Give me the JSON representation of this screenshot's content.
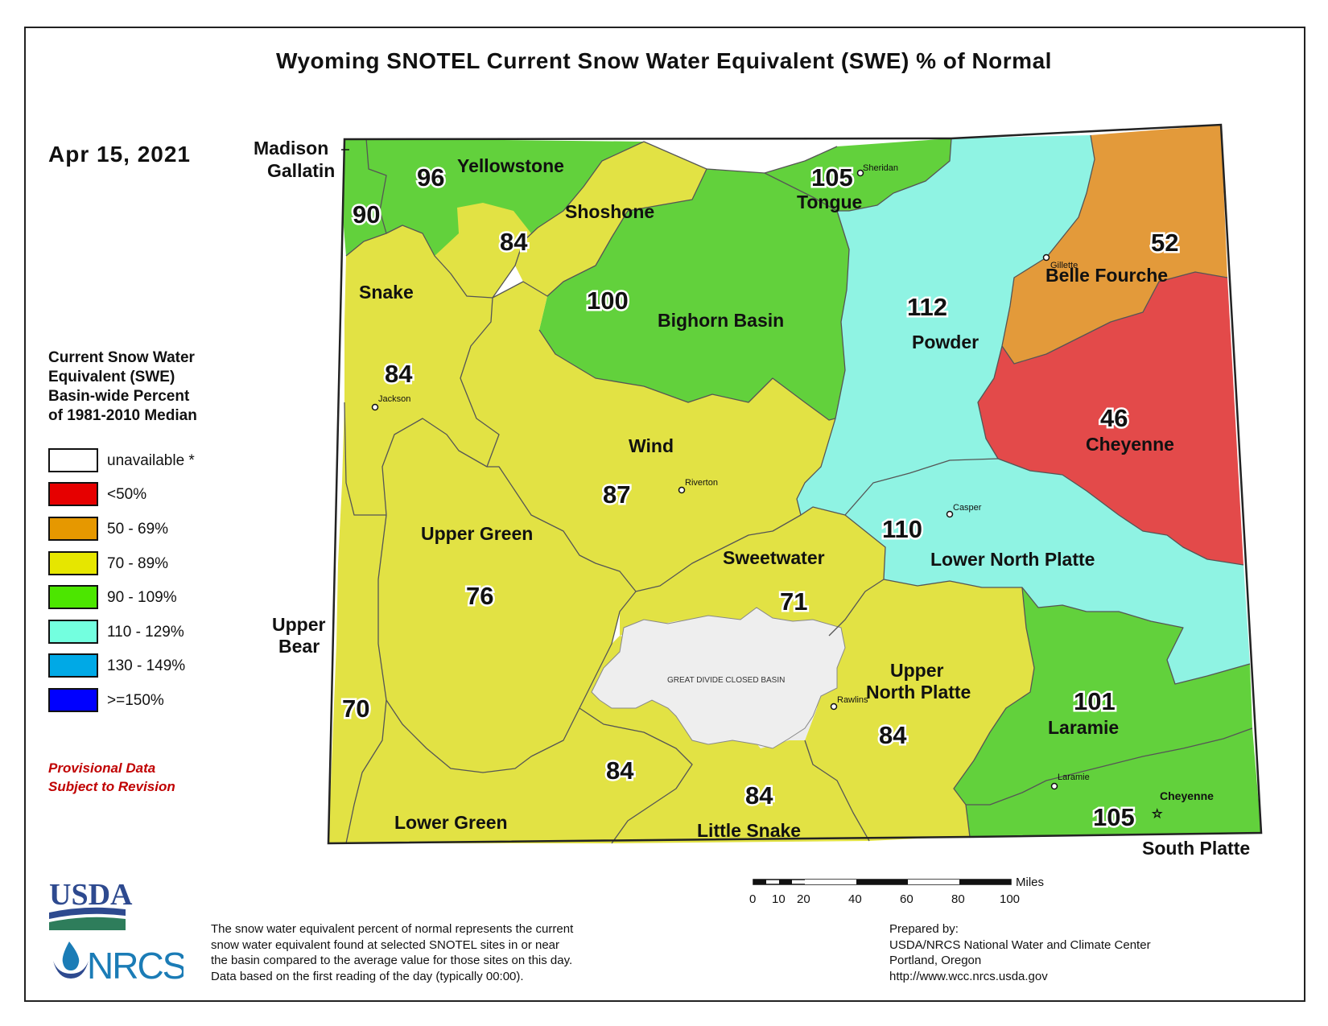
{
  "title": "Wyoming SNOTEL Current Snow Water Equivalent (SWE) % of Normal",
  "date": "Apr 15, 2021",
  "legend": {
    "title_lines": [
      "Current Snow Water",
      "Equivalent (SWE)",
      "Basin-wide Percent",
      "of 1981-2010 Median"
    ],
    "items": [
      {
        "label": "unavailable *",
        "color": "#ffffff"
      },
      {
        "label": "<50%",
        "color": "#e60000"
      },
      {
        "label": "50 - 69%",
        "color": "#e69800"
      },
      {
        "label": "70 - 89%",
        "color": "#e6e600"
      },
      {
        "label": "90 - 109%",
        "color": "#4ce600"
      },
      {
        "label": "110 - 129%",
        "color": "#73ffdf"
      },
      {
        "label": "130 - 149%",
        "color": "#00a9e6"
      },
      {
        "label": ">=150%",
        "color": "#0000ff"
      }
    ]
  },
  "provisional_lines": [
    "Provisional Data",
    "Subject to Revision"
  ],
  "basins": [
    {
      "name": "Madison - Gallatin",
      "name_lines": [
        "Madison",
        "Gallatin"
      ],
      "value": "90",
      "color": "#62d13c"
    },
    {
      "name": "Yellowstone",
      "value": "96",
      "color": "#62d13c"
    },
    {
      "name": "Shoshone",
      "value": "84",
      "color": "#e2e244"
    },
    {
      "name": "Bighorn Basin",
      "value": "100",
      "color": "#62d13c"
    },
    {
      "name": "Tongue",
      "value": "105",
      "color": "#62d13c"
    },
    {
      "name": "Powder",
      "value": "112",
      "color": "#8ff3e3"
    },
    {
      "name": "Belle Fourche",
      "value": "52",
      "color": "#e39a3a"
    },
    {
      "name": "Cheyenne",
      "value": "46",
      "color": "#e34a4a"
    },
    {
      "name": "Snake",
      "value": "84",
      "color": "#e2e244"
    },
    {
      "name": "Wind",
      "value": "87",
      "color": "#e2e244"
    },
    {
      "name": "Upper Green",
      "value": "76",
      "color": "#e2e244"
    },
    {
      "name": "Sweetwater",
      "value": "71",
      "color": "#e2e244"
    },
    {
      "name": "Lower North Platte",
      "value": "110",
      "color": "#8ff3e3"
    },
    {
      "name": "Upper Bear",
      "name_lines": [
        "Upper",
        "Bear"
      ],
      "value": "70",
      "color": "#e2e244"
    },
    {
      "name": "Upper North Platte",
      "name_lines": [
        "Upper",
        "North Platte"
      ],
      "value": "84",
      "color": "#e2e244"
    },
    {
      "name": "Laramie",
      "value": "101",
      "color": "#62d13c"
    },
    {
      "name": "Lower Green",
      "value": "84",
      "color": "#e2e244"
    },
    {
      "name": "Little Snake",
      "value": "84",
      "color": "#e2e244"
    },
    {
      "name": "South Platte",
      "value": "105",
      "color": "#62d13c"
    },
    {
      "name": "Great Divide Closed Basin",
      "label": "GREAT DIVIDE CLOSED BASIN",
      "color": "#ececec"
    }
  ],
  "cities": [
    "Sheridan",
    "Gillette",
    "Jackson",
    "Riverton",
    "Casper",
    "Rawlins",
    "Laramie",
    "Cheyenne"
  ],
  "scale_bar": {
    "unit": "Miles",
    "ticks": [
      "0",
      "10",
      "20",
      "40",
      "60",
      "80",
      "100"
    ]
  },
  "footnote_lines": [
    "The snow water equivalent percent of normal represents the current",
    "snow water equivalent found at selected SNOTEL sites in or near",
    "the basin compared to the average value for those sites on this day.",
    "Data based on the first reading of the day (typically 00:00)."
  ],
  "prepared_lines": [
    "Prepared by:",
    "USDA/NRCS National Water and Climate Center",
    "Portland, Oregon",
    "http://www.wcc.nrcs.usda.gov"
  ],
  "logo": {
    "usda": "USDA",
    "nrcs": "NRCS"
  }
}
